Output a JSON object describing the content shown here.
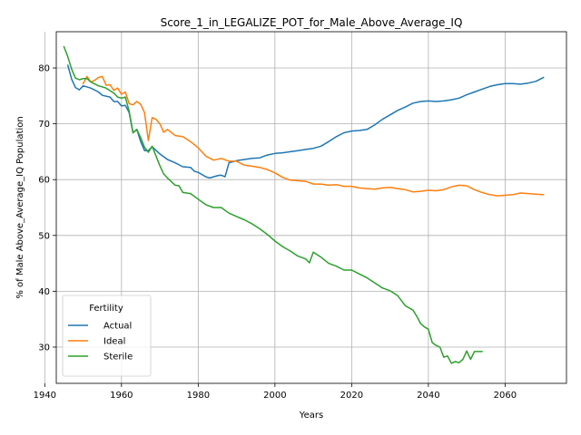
{
  "chart_data": {
    "type": "line",
    "title": "Score_1_in_LEGALIZE_POT_for_Male_Above_Average_IQ",
    "xlabel": "Years",
    "ylabel": "% of Male Above_Average_IQ Population",
    "xlim": [
      1943,
      2076
    ],
    "ylim": [
      23.5,
      86.5
    ],
    "xticks": [
      1940,
      1960,
      1980,
      2000,
      2020,
      2040,
      2060
    ],
    "yticks": [
      30,
      40,
      50,
      60,
      70,
      80
    ],
    "grid": true,
    "legend": {
      "title": "Fertility",
      "position": "lower-left"
    },
    "series": [
      {
        "name": "Actual",
        "color": "#1f77b4",
        "x": [
          1946,
          1947,
          1948,
          1949,
          1950,
          1952,
          1954,
          1955,
          1957,
          1958,
          1959,
          1960,
          1961,
          1962,
          1963,
          1964,
          1965,
          1966,
          1967,
          1968,
          1970,
          1972,
          1974,
          1976,
          1978,
          1979,
          1980,
          1982,
          1983,
          1985,
          1986,
          1987,
          1988,
          1990,
          1992,
          1994,
          1996,
          1998,
          2000,
          2002,
          2004,
          2006,
          2008,
          2010,
          2012,
          2014,
          2016,
          2018,
          2020,
          2022,
          2024,
          2026,
          2028,
          2030,
          2032,
          2034,
          2036,
          2038,
          2040,
          2042,
          2044,
          2046,
          2048,
          2050,
          2052,
          2054,
          2056,
          2058,
          2060,
          2062,
          2064,
          2066,
          2068,
          2070
        ],
        "y": [
          80.5,
          78,
          76.5,
          76.1,
          76.8,
          76.4,
          75.7,
          75.1,
          74.8,
          74.0,
          74.0,
          73.2,
          73.3,
          72.0,
          68.4,
          69.0,
          66.8,
          65.2,
          65.2,
          65.9,
          64.6,
          63.6,
          63.0,
          62.3,
          62.2,
          61.5,
          61.3,
          60.5,
          60.3,
          60.7,
          60.8,
          60.5,
          63.0,
          63.4,
          63.6,
          63.8,
          63.9,
          64.4,
          64.7,
          64.8,
          65.0,
          65.2,
          65.4,
          65.6,
          66.0,
          66.8,
          67.7,
          68.4,
          68.7,
          68.8,
          69.0,
          69.8,
          70.8,
          71.6,
          72.4,
          73.0,
          73.7,
          74.0,
          74.1,
          74.0,
          74.1,
          74.3,
          74.6,
          75.2,
          75.7,
          76.2,
          76.7,
          77.0,
          77.2,
          77.2,
          77.1,
          77.3,
          77.6,
          78.3
        ]
      },
      {
        "name": "Ideal",
        "color": "#ff7f0e",
        "x": [
          1950,
          1951,
          1952,
          1953,
          1954,
          1955,
          1956,
          1957,
          1958,
          1959,
          1960,
          1961,
          1962,
          1963,
          1964,
          1965,
          1966,
          1967,
          1968,
          1969,
          1970,
          1971,
          1972,
          1974,
          1976,
          1978,
          1980,
          1982,
          1984,
          1986,
          1988,
          1990,
          1992,
          1994,
          1996,
          1998,
          2000,
          2002,
          2004,
          2006,
          2008,
          2010,
          2012,
          2014,
          2016,
          2018,
          2020,
          2022,
          2024,
          2026,
          2028,
          2030,
          2032,
          2034,
          2036,
          2038,
          2040,
          2042,
          2044,
          2046,
          2048,
          2050,
          2052,
          2054,
          2056,
          2058,
          2060,
          2062,
          2064,
          2066,
          2068,
          2070
        ],
        "y": [
          77.2,
          78.5,
          77.5,
          77.8,
          78.3,
          78.5,
          76.9,
          77.0,
          76.0,
          76.4,
          75.3,
          75.7,
          73.6,
          73.4,
          74.0,
          73.5,
          72.0,
          67.0,
          71.1,
          70.8,
          70.0,
          68.5,
          69.0,
          67.9,
          67.7,
          66.8,
          65.7,
          64.2,
          63.5,
          63.8,
          63.3,
          63.3,
          62.6,
          62.4,
          62.2,
          61.8,
          61.2,
          60.4,
          59.9,
          59.8,
          59.7,
          59.2,
          59.2,
          59.0,
          59.1,
          58.8,
          58.8,
          58.5,
          58.4,
          58.3,
          58.5,
          58.6,
          58.4,
          58.2,
          57.8,
          57.9,
          58.1,
          58.0,
          58.2,
          58.7,
          59.0,
          58.9,
          58.2,
          57.7,
          57.3,
          57.1,
          57.2,
          57.3,
          57.6,
          57.5,
          57.4,
          57.3
        ]
      },
      {
        "name": "Sterile",
        "color": "#2ca02c",
        "x": [
          1945,
          1946,
          1947,
          1948,
          1949,
          1950,
          1951,
          1952,
          1954,
          1956,
          1958,
          1959,
          1960,
          1961,
          1962,
          1963,
          1964,
          1965,
          1966,
          1967,
          1968,
          1969,
          1970,
          1971,
          1972,
          1974,
          1975,
          1976,
          1978,
          1980,
          1982,
          1984,
          1986,
          1988,
          1990,
          1992,
          1994,
          1996,
          1998,
          2000,
          2002,
          2004,
          2006,
          2008,
          2009,
          2010,
          2012,
          2014,
          2016,
          2018,
          2020,
          2022,
          2024,
          2026,
          2028,
          2030,
          2032,
          2034,
          2036,
          2037,
          2038,
          2039,
          2040,
          2041,
          2042,
          2043,
          2044,
          2045,
          2046,
          2047,
          2048,
          2049,
          2050,
          2051,
          2052,
          2053,
          2054
        ],
        "y": [
          83.8,
          82.0,
          79.8,
          78.2,
          77.9,
          78.1,
          78.1,
          77.5,
          76.8,
          76.4,
          75.5,
          74.8,
          74.6,
          74.8,
          72.2,
          68.4,
          69.0,
          67.5,
          65.8,
          64.9,
          66.0,
          64.2,
          62.5,
          61.0,
          60.3,
          59.0,
          58.9,
          57.7,
          57.5,
          56.5,
          55.5,
          55.0,
          55.0,
          54.0,
          53.4,
          52.8,
          52.1,
          51.2,
          50.2,
          49.0,
          48.0,
          47.2,
          46.3,
          45.8,
          45.1,
          47.0,
          46.1,
          45.0,
          44.5,
          43.8,
          43.8,
          43.1,
          42.4,
          41.5,
          40.6,
          40.1,
          39.2,
          37.4,
          36.6,
          35.5,
          34.2,
          33.6,
          33.2,
          30.8,
          30.3,
          30.0,
          28.2,
          28.4,
          27.1,
          27.4,
          27.2,
          27.8,
          29.3,
          27.8,
          29.2,
          29.2,
          29.2
        ]
      }
    ]
  }
}
